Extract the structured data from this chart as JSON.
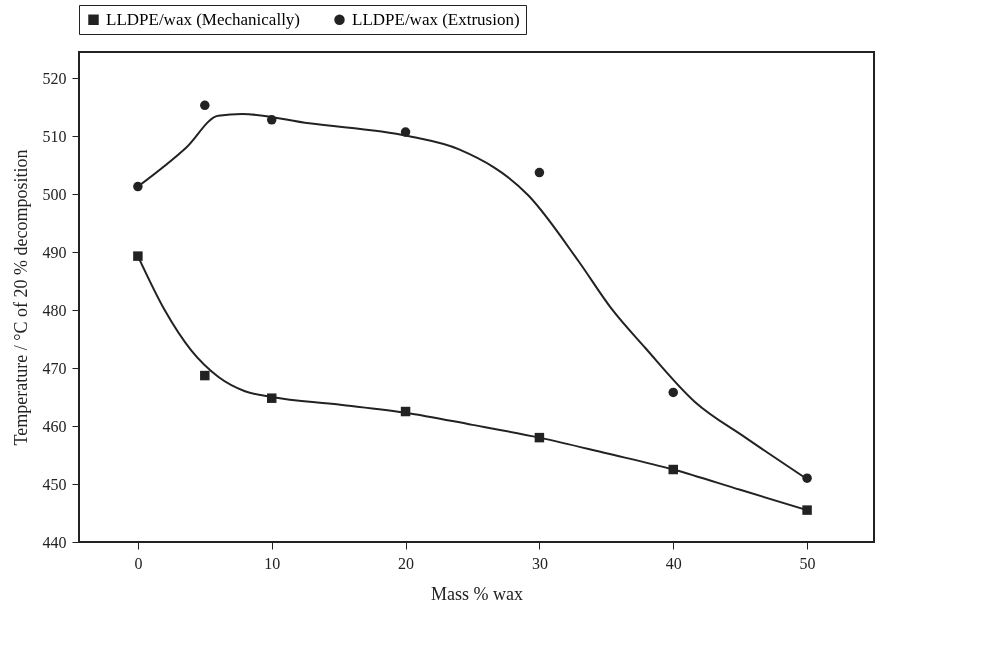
{
  "chart_data": {
    "type": "scatter",
    "xlabel": "Mass % wax",
    "ylabel": "Temperature / °C of 20 % decomposition",
    "x": [
      0,
      5,
      10,
      20,
      30,
      40,
      50
    ],
    "xlim": [
      -4.4,
      55
    ],
    "xticks": [
      0,
      10,
      20,
      30,
      40,
      50
    ],
    "ylim": [
      440,
      524.5
    ],
    "yticks": [
      440,
      450,
      460,
      470,
      480,
      490,
      500,
      510,
      520
    ],
    "grid": false,
    "legend": "top",
    "series": [
      {
        "name": "LLDPE/wax (Mechanically)",
        "marker": "square",
        "color": "#222222",
        "values": [
          489.3,
          468.7,
          464.8,
          462.5,
          458,
          452.5,
          445.5
        ]
      },
      {
        "name": "LLDPE/wax (Extrusion)",
        "marker": "circle",
        "color": "#222222",
        "values": [
          501.3,
          515.3,
          512.8,
          510.7,
          503.7,
          465.8,
          451
        ]
      },
      {
        "type": "line",
        "color": "#222222",
        "line_style": "solid",
        "x": [
          0,
          2,
          4,
          6,
          8,
          10,
          15,
          20,
          25,
          30,
          35,
          40,
          45,
          50
        ],
        "values": [
          489.3,
          480,
          473,
          468.5,
          466,
          465,
          463.7,
          462.3,
          460.2,
          458,
          455.3,
          452.5,
          449,
          445.5
        ]
      },
      {
        "type": "line",
        "color": "#222222",
        "line_style": "solid",
        "x": [
          0,
          3.6,
          6,
          7.8,
          12.8,
          20.2,
          24,
          29.2,
          32.9,
          35.4,
          37.9,
          41.6,
          45.4,
          49.9
        ],
        "values": [
          501.3,
          508,
          513.5,
          513.8,
          512.2,
          510,
          507.7,
          499.7,
          488.5,
          480.2,
          473.5,
          464.2,
          458,
          451
        ]
      }
    ]
  }
}
